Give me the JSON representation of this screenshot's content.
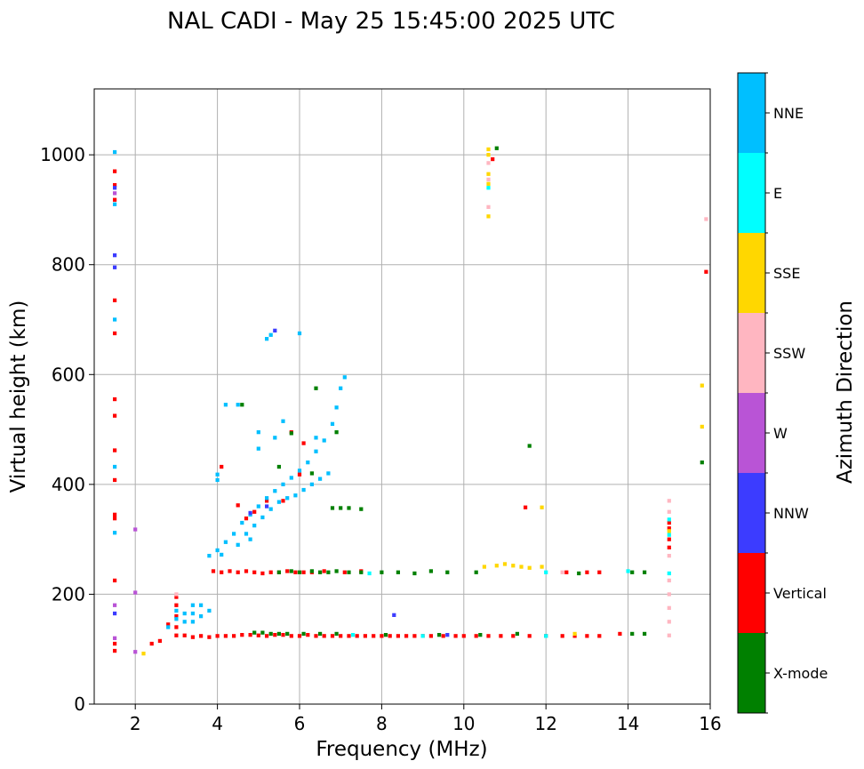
{
  "chart_data": {
    "type": "scatter",
    "title": "NAL CADI - May 25 15:45:00 2025 UTC",
    "xlabel": "Frequency (MHz)",
    "ylabel": "Virtual height (km)",
    "xlim": [
      1,
      16
    ],
    "ylim": [
      0,
      1120
    ],
    "xticks": [
      2,
      4,
      6,
      8,
      10,
      12,
      14,
      16
    ],
    "yticks": [
      0,
      200,
      400,
      600,
      800,
      1000
    ],
    "grid": true,
    "colorbar": {
      "label": "Azimuth Direction",
      "categories": [
        {
          "name": "X-mode",
          "color": "#008000"
        },
        {
          "name": "Vertical",
          "color": "#ff0000"
        },
        {
          "name": "NNW",
          "color": "#3c3cff"
        },
        {
          "name": "W",
          "color": "#b954d6"
        },
        {
          "name": "SSW",
          "color": "#ffb6c1"
        },
        {
          "name": "SSE",
          "color": "#ffd700"
        },
        {
          "name": "E",
          "color": "#00ffff"
        },
        {
          "name": "NNE",
          "color": "#00bfff"
        }
      ]
    },
    "point_size_mhz": 0.09,
    "point_height_km": 7,
    "series": [
      {
        "name": "Vertical",
        "points": [
          [
            1.5,
            970
          ],
          [
            1.5,
            945
          ],
          [
            1.5,
            918
          ],
          [
            1.5,
            735
          ],
          [
            1.5,
            675
          ],
          [
            1.5,
            555
          ],
          [
            1.5,
            525
          ],
          [
            1.5,
            462
          ],
          [
            1.5,
            408
          ],
          [
            1.5,
            345
          ],
          [
            1.5,
            338
          ],
          [
            1.5,
            225
          ],
          [
            1.5,
            110
          ],
          [
            1.5,
            97
          ],
          [
            2.4,
            110
          ],
          [
            2.6,
            115
          ],
          [
            2.8,
            145
          ],
          [
            3.0,
            195
          ],
          [
            3.0,
            180
          ],
          [
            3.0,
            160
          ],
          [
            3.0,
            140
          ],
          [
            3.0,
            125
          ],
          [
            3.2,
            125
          ],
          [
            3.4,
            122
          ],
          [
            3.6,
            124
          ],
          [
            3.8,
            122
          ],
          [
            4.0,
            124
          ],
          [
            4.2,
            124
          ],
          [
            4.4,
            124
          ],
          [
            4.6,
            126
          ],
          [
            4.8,
            126
          ],
          [
            5.0,
            125
          ],
          [
            5.2,
            124
          ],
          [
            5.4,
            126
          ],
          [
            5.6,
            126
          ],
          [
            5.8,
            124
          ],
          [
            6.0,
            124
          ],
          [
            6.2,
            126
          ],
          [
            6.4,
            124
          ],
          [
            6.6,
            124
          ],
          [
            6.8,
            124
          ],
          [
            7.0,
            124
          ],
          [
            7.2,
            124
          ],
          [
            7.4,
            124
          ],
          [
            7.6,
            124
          ],
          [
            7.8,
            124
          ],
          [
            8.0,
            124
          ],
          [
            8.2,
            124
          ],
          [
            8.4,
            124
          ],
          [
            8.6,
            124
          ],
          [
            8.8,
            124
          ],
          [
            9.0,
            124
          ],
          [
            9.2,
            124
          ],
          [
            9.5,
            124
          ],
          [
            9.8,
            124
          ],
          [
            10.0,
            124
          ],
          [
            10.3,
            124
          ],
          [
            10.6,
            124
          ],
          [
            10.9,
            124
          ],
          [
            11.2,
            124
          ],
          [
            11.6,
            124
          ],
          [
            12.0,
            124
          ],
          [
            12.4,
            124
          ],
          [
            12.7,
            124
          ],
          [
            13.0,
            124
          ],
          [
            13.3,
            124
          ],
          [
            13.8,
            128
          ],
          [
            3.9,
            242
          ],
          [
            4.1,
            240
          ],
          [
            4.3,
            242
          ],
          [
            4.5,
            240
          ],
          [
            4.7,
            242
          ],
          [
            4.9,
            240
          ],
          [
            5.1,
            238
          ],
          [
            5.3,
            240
          ],
          [
            5.5,
            240
          ],
          [
            5.7,
            242
          ],
          [
            5.9,
            240
          ],
          [
            6.1,
            240
          ],
          [
            6.3,
            240
          ],
          [
            6.6,
            242
          ],
          [
            7.1,
            240
          ],
          [
            7.5,
            242
          ],
          [
            12.5,
            240
          ],
          [
            13.0,
            240
          ],
          [
            13.3,
            240
          ],
          [
            4.1,
            432
          ],
          [
            4.5,
            362
          ],
          [
            4.7,
            338
          ],
          [
            4.9,
            350
          ],
          [
            5.2,
            370
          ],
          [
            5.6,
            370
          ],
          [
            5.8,
            495
          ],
          [
            6.0,
            418
          ],
          [
            6.1,
            475
          ],
          [
            11.5,
            358
          ],
          [
            10.7,
            992
          ],
          [
            15.0,
            330
          ],
          [
            15.0,
            320
          ],
          [
            15.0,
            300
          ],
          [
            15.0,
            285
          ],
          [
            15.9,
            787
          ]
        ]
      },
      {
        "name": "X-mode",
        "points": [
          [
            4.9,
            130
          ],
          [
            5.1,
            130
          ],
          [
            5.3,
            128
          ],
          [
            5.5,
            128
          ],
          [
            5.7,
            128
          ],
          [
            6.1,
            128
          ],
          [
            6.5,
            128
          ],
          [
            6.9,
            128
          ],
          [
            8.1,
            126
          ],
          [
            9.4,
            126
          ],
          [
            10.4,
            126
          ],
          [
            11.3,
            128
          ],
          [
            14.1,
            128
          ],
          [
            14.4,
            128
          ],
          [
            5.5,
            240
          ],
          [
            5.8,
            242
          ],
          [
            6.0,
            240
          ],
          [
            6.3,
            242
          ],
          [
            6.5,
            240
          ],
          [
            6.7,
            240
          ],
          [
            6.9,
            242
          ],
          [
            7.2,
            240
          ],
          [
            7.5,
            240
          ],
          [
            8.0,
            240
          ],
          [
            8.4,
            240
          ],
          [
            8.8,
            238
          ],
          [
            9.2,
            242
          ],
          [
            9.6,
            240
          ],
          [
            10.3,
            240
          ],
          [
            12.8,
            238
          ],
          [
            14.1,
            240
          ],
          [
            14.4,
            240
          ],
          [
            6.8,
            357
          ],
          [
            7.0,
            357
          ],
          [
            7.2,
            357
          ],
          [
            7.5,
            355
          ],
          [
            4.6,
            545
          ],
          [
            5.5,
            432
          ],
          [
            6.4,
            575
          ],
          [
            6.9,
            495
          ],
          [
            6.3,
            420
          ],
          [
            5.8,
            493
          ],
          [
            11.6,
            470
          ],
          [
            10.8,
            1012
          ],
          [
            15.8,
            440
          ]
        ]
      },
      {
        "name": "NNE",
        "points": [
          [
            1.5,
            1005
          ],
          [
            1.5,
            910
          ],
          [
            1.5,
            700
          ],
          [
            1.5,
            432
          ],
          [
            1.5,
            312
          ],
          [
            3.8,
            270
          ],
          [
            4.0,
            280
          ],
          [
            4.2,
            295
          ],
          [
            4.4,
            310
          ],
          [
            4.6,
            330
          ],
          [
            4.8,
            345
          ],
          [
            5.0,
            360
          ],
          [
            5.2,
            375
          ],
          [
            5.4,
            388
          ],
          [
            5.6,
            400
          ],
          [
            5.8,
            412
          ],
          [
            6.0,
            425
          ],
          [
            6.2,
            440
          ],
          [
            6.4,
            460
          ],
          [
            6.6,
            480
          ],
          [
            6.8,
            510
          ],
          [
            6.9,
            540
          ],
          [
            7.0,
            575
          ],
          [
            7.1,
            595
          ],
          [
            4.5,
            290
          ],
          [
            4.7,
            310
          ],
          [
            4.9,
            325
          ],
          [
            5.1,
            340
          ],
          [
            5.3,
            355
          ],
          [
            5.5,
            368
          ],
          [
            5.7,
            375
          ],
          [
            5.9,
            380
          ],
          [
            6.1,
            390
          ],
          [
            6.3,
            400
          ],
          [
            6.5,
            410
          ],
          [
            6.7,
            420
          ],
          [
            4.0,
            408
          ],
          [
            4.0,
            418
          ],
          [
            4.2,
            545
          ],
          [
            4.5,
            545
          ],
          [
            5.0,
            495
          ],
          [
            5.4,
            485
          ],
          [
            5.2,
            665
          ],
          [
            5.3,
            672
          ],
          [
            6.0,
            675
          ],
          [
            6.4,
            485
          ],
          [
            5.6,
            515
          ],
          [
            5.0,
            465
          ],
          [
            4.1,
            272
          ],
          [
            4.8,
            300
          ],
          [
            2.8,
            140
          ],
          [
            3.0,
            170
          ],
          [
            3.2,
            165
          ],
          [
            3.4,
            165
          ],
          [
            3.6,
            160
          ],
          [
            3.8,
            170
          ],
          [
            3.4,
            180
          ],
          [
            3.6,
            180
          ],
          [
            3.0,
            155
          ],
          [
            3.2,
            150
          ],
          [
            3.4,
            150
          ]
        ]
      },
      {
        "name": "E",
        "points": [
          [
            7.7,
            238
          ],
          [
            9.0,
            124
          ],
          [
            10.6,
            940
          ],
          [
            12.0,
            240
          ],
          [
            14.0,
            242
          ],
          [
            15.0,
            238
          ],
          [
            15.0,
            336
          ],
          [
            15.0,
            308
          ],
          [
            12.0,
            124
          ],
          [
            7.3,
            126
          ]
        ]
      },
      {
        "name": "SSW",
        "points": [
          [
            10.6,
            985
          ],
          [
            10.6,
            905
          ],
          [
            10.6,
            955
          ],
          [
            12.4,
            240
          ],
          [
            15.0,
            370
          ],
          [
            15.0,
            350
          ],
          [
            15.0,
            270
          ],
          [
            15.0,
            225
          ],
          [
            15.0,
            200
          ],
          [
            15.0,
            175
          ],
          [
            15.0,
            150
          ],
          [
            15.0,
            125
          ],
          [
            15.9,
            883
          ],
          [
            3.0,
            200
          ]
        ]
      },
      {
        "name": "SSE",
        "points": [
          [
            10.6,
            1010
          ],
          [
            10.6,
            1000
          ],
          [
            10.6,
            965
          ],
          [
            10.6,
            947
          ],
          [
            10.6,
            888
          ],
          [
            10.5,
            250
          ],
          [
            10.8,
            252
          ],
          [
            11.0,
            255
          ],
          [
            11.2,
            252
          ],
          [
            11.4,
            250
          ],
          [
            11.6,
            248
          ],
          [
            11.9,
            250
          ],
          [
            11.9,
            358
          ],
          [
            12.7,
            128
          ],
          [
            15.0,
            315
          ],
          [
            15.8,
            580
          ],
          [
            15.8,
            505
          ],
          [
            2.2,
            92
          ]
        ]
      },
      {
        "name": "NNW",
        "points": [
          [
            1.5,
            817
          ],
          [
            1.5,
            795
          ],
          [
            1.5,
            940
          ],
          [
            1.5,
            165
          ],
          [
            5.2,
            360
          ],
          [
            5.4,
            680
          ],
          [
            4.8,
            348
          ],
          [
            8.3,
            162
          ],
          [
            9.6,
            126
          ]
        ]
      },
      {
        "name": "W",
        "points": [
          [
            1.5,
            930
          ],
          [
            1.5,
            180
          ],
          [
            2.0,
            318
          ],
          [
            2.0,
            203
          ],
          [
            1.5,
            120
          ],
          [
            2.0,
            95
          ]
        ]
      }
    ]
  }
}
